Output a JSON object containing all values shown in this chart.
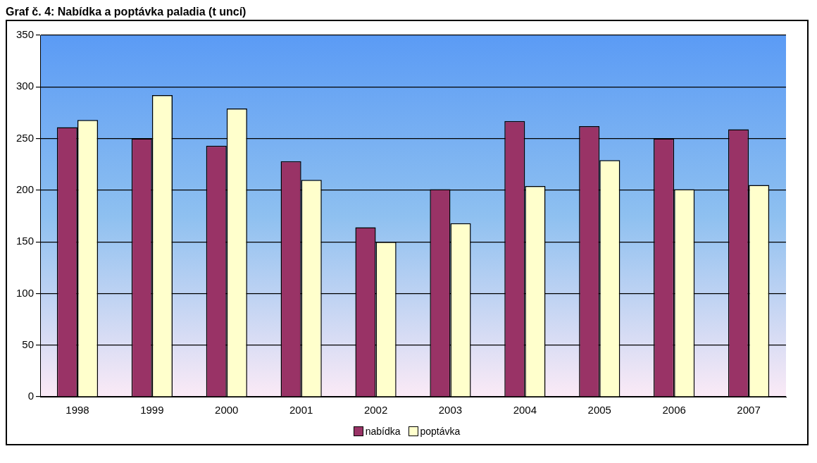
{
  "chart_data": {
    "type": "bar",
    "title": "Graf č. 4: Nabídka a poptávka paladia (t uncí)",
    "categories": [
      "1998",
      "1999",
      "2000",
      "2001",
      "2002",
      "2003",
      "2004",
      "2005",
      "2006",
      "2007"
    ],
    "series": [
      {
        "name": "nabídka",
        "color": "#993366",
        "values": [
          261,
          250,
          243,
          228,
          164,
          201,
          267,
          262,
          250,
          259
        ]
      },
      {
        "name": "poptávka",
        "color": "#ffffcc",
        "values": [
          268,
          292,
          279,
          210,
          150,
          168,
          204,
          229,
          201,
          205
        ]
      }
    ],
    "ylim": [
      0,
      350
    ],
    "yticks": [
      0,
      50,
      100,
      150,
      200,
      250,
      300,
      350
    ],
    "grid": "y",
    "legend": "bottom"
  }
}
